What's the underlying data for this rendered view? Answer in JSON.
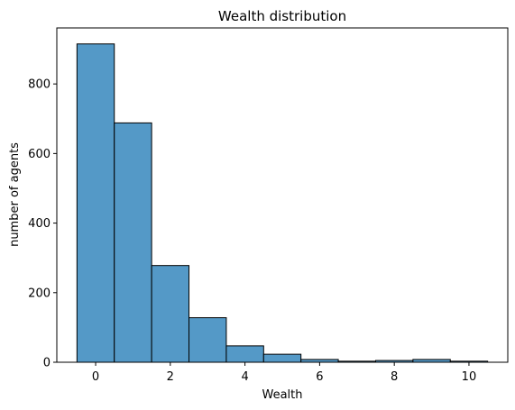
{
  "chart_data": {
    "type": "bar",
    "title": "Wealth distribution",
    "xlabel": "Wealth",
    "ylabel": "number of agents",
    "bar_color": "#5499c7",
    "edge_color": "#000000",
    "bins": [
      {
        "x": 0,
        "count": 915
      },
      {
        "x": 1,
        "count": 688
      },
      {
        "x": 2,
        "count": 278
      },
      {
        "x": 3,
        "count": 128
      },
      {
        "x": 4,
        "count": 47
      },
      {
        "x": 5,
        "count": 23
      },
      {
        "x": 6,
        "count": 8
      },
      {
        "x": 7,
        "count": 3
      },
      {
        "x": 8,
        "count": 5
      },
      {
        "x": 9,
        "count": 8
      },
      {
        "x": 10,
        "count": 3
      }
    ],
    "bin_width": 1,
    "xlim": [
      -1.04,
      11.04
    ],
    "ylim": [
      0,
      961
    ],
    "xticks": [
      0,
      2,
      4,
      6,
      8,
      10
    ],
    "yticks": [
      0,
      200,
      400,
      600,
      800
    ],
    "grid": false
  }
}
